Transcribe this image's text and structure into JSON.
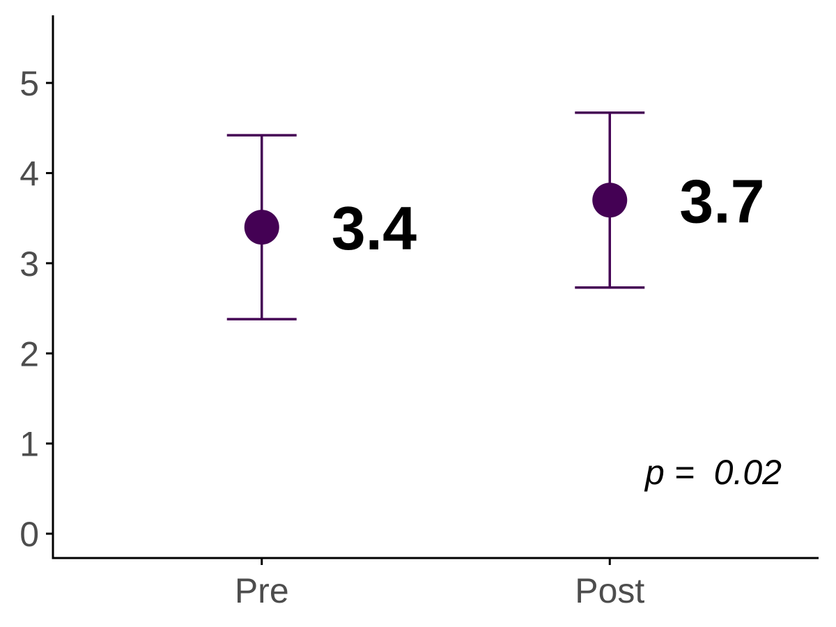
{
  "chart_data": {
    "type": "scatter",
    "categories": [
      "Pre",
      "Post"
    ],
    "series": [
      {
        "points": [
          {
            "x": "Pre",
            "y": 3.4,
            "ymin": 2.38,
            "ymax": 4.42,
            "label": "3.4"
          },
          {
            "x": "Post",
            "y": 3.7,
            "ymin": 2.73,
            "ymax": 4.67,
            "label": "3.7"
          }
        ]
      }
    ],
    "yticks": [
      "0",
      "1",
      "2",
      "3",
      "4",
      "5"
    ],
    "ylim": [
      -0.27,
      5.75
    ],
    "annotation": {
      "prefix": "p",
      "text": " =  0.02"
    },
    "grid": false,
    "legend": "none",
    "colors": {
      "point": "#440154",
      "axis": "#000000",
      "tick_text": "#4d4d4d"
    }
  }
}
